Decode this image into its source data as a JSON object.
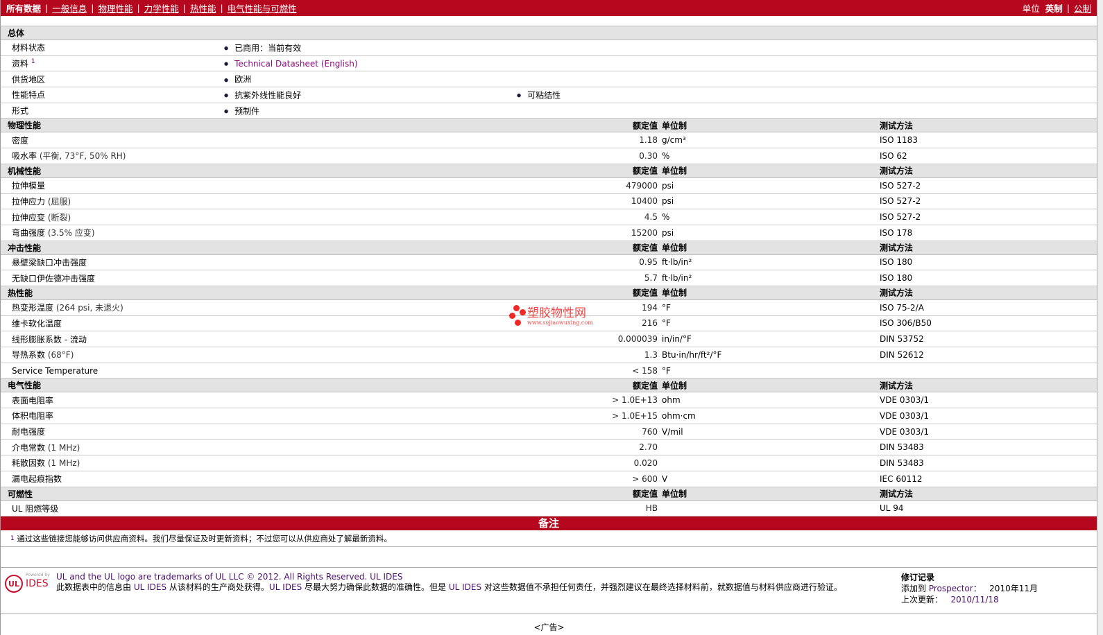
{
  "topbar": {
    "tabs": [
      "所有数据",
      "一般信息",
      "物理性能",
      "力学性能",
      "热性能",
      "电气性能与可燃性"
    ],
    "units_label": "单位",
    "unit_english": "英制",
    "unit_metric": "公制"
  },
  "value_header": "额定值",
  "unit_header": "单位制",
  "method_header": "测试方法",
  "general": {
    "title": "总体",
    "rows": [
      {
        "label": "材料状态",
        "items": [
          "已商用：当前有效"
        ]
      },
      {
        "label": "资料",
        "sup": "1",
        "items": [
          "Technical Datasheet (English)"
        ],
        "link": true
      },
      {
        "label": "供货地区",
        "items": [
          "欧洲"
        ]
      },
      {
        "label": "性能特点",
        "items": [
          "抗紫外线性能良好",
          "可粘结性"
        ]
      },
      {
        "label": "形式",
        "items": [
          "预制件"
        ]
      }
    ]
  },
  "sections": [
    {
      "title": "物理性能",
      "rows": [
        {
          "label": "密度",
          "value": "1.18",
          "unit": "g/cm³",
          "method": "ISO 1183"
        },
        {
          "label": "吸水率",
          "cond": "(平衡, 73°F, 50% RH)",
          "value": "0.30",
          "unit": "%",
          "method": "ISO 62"
        }
      ]
    },
    {
      "title": "机械性能",
      "rows": [
        {
          "label": "拉伸模量",
          "value": "479000",
          "unit": "psi",
          "method": "ISO 527-2"
        },
        {
          "label": "拉伸应力",
          "cond": "(屈服)",
          "value": "10400",
          "unit": "psi",
          "method": "ISO 527-2"
        },
        {
          "label": "拉伸应变",
          "cond": "(断裂)",
          "value": "4.5",
          "unit": "%",
          "method": "ISO 527-2"
        },
        {
          "label": "弯曲强度",
          "cond": "(3.5% 应变)",
          "value": "15200",
          "unit": "psi",
          "method": "ISO 178"
        }
      ]
    },
    {
      "title": "冲击性能",
      "rows": [
        {
          "label": "悬壁梁缺口冲击强度",
          "value": "0.95",
          "unit": "ft·lb/in²",
          "method": "ISO 180"
        },
        {
          "label": "无缺口伊佐德冲击强度",
          "value": "5.7",
          "unit": "ft·lb/in²",
          "method": "ISO 180"
        }
      ]
    },
    {
      "title": "热性能",
      "rows": [
        {
          "label": "热变形温度",
          "cond": "(264 psi, 未退火)",
          "value": "194",
          "unit": "°F",
          "method": "ISO 75-2/A"
        },
        {
          "label": "维卡软化温度",
          "value": "216",
          "unit": "°F",
          "method": "ISO 306/B50"
        },
        {
          "label": "线形膨胀系数 - 流动",
          "value": "0.000039",
          "unit": "in/in/°F",
          "method": "DIN 53752"
        },
        {
          "label": "导热系数",
          "cond": "(68°F)",
          "value": "1.3",
          "unit": "Btu·in/hr/ft²/°F",
          "method": "DIN 52612"
        },
        {
          "label": "Service Temperature",
          "value": "< 158",
          "unit": "°F",
          "method": ""
        }
      ]
    },
    {
      "title": "电气性能",
      "rows": [
        {
          "label": "表面电阻率",
          "value": "> 1.0E+13",
          "unit": "ohm",
          "method": "VDE 0303/1"
        },
        {
          "label": "体积电阻率",
          "value": "> 1.0E+15",
          "unit": "ohm·cm",
          "method": "VDE 0303/1"
        },
        {
          "label": "耐电强度",
          "value": "760",
          "unit": "V/mil",
          "method": "VDE 0303/1"
        },
        {
          "label": "介电常数",
          "cond": "(1 MHz)",
          "value": "2.70",
          "unit": "",
          "method": "DIN 53483"
        },
        {
          "label": "耗散因数",
          "cond": "(1 MHz)",
          "value": "0.020",
          "unit": "",
          "method": "DIN 53483"
        },
        {
          "label": "漏电起痕指数",
          "value": "> 600",
          "unit": "V",
          "method": "IEC 60112"
        }
      ]
    },
    {
      "title": "可燃性",
      "rows": [
        {
          "label": "UL 阻燃等级",
          "value": "HB",
          "unit": "",
          "method": "UL 94"
        }
      ]
    }
  ],
  "notes": {
    "title": "备注",
    "sup": "1",
    "text": "通过这些链接您能够访问供应商资料。我们尽量保证及时更新资料；不过您可以从供应商处了解最新资料。"
  },
  "footer": {
    "logo_powered": "Powered by",
    "logo_ul": "UL",
    "logo_ides": "IDES",
    "trademark": "UL and the UL logo are trademarks of UL LLC © 2012. All Rights Reserved. UL IDES",
    "p1": "此数据表中的信息由 ",
    "ul1": "UL IDES",
    "p2": " 从该材料的生产商处获得。",
    "ul2": "UL IDES",
    "p3": " 尽最大努力确保此数据的准确性。但是 ",
    "ul3": "UL IDES",
    "p4": " 对这些数据值不承担任何责任，并强烈建议在最终选择材料前，就数据值与材料供应商进行验证。",
    "rev_title": "修订记录",
    "added_label": "添加到 ",
    "added_link": "Prospector",
    "added_colon": "：",
    "added_date": "2010年11月",
    "updated_label": "上次更新：",
    "updated_date": "2010/11/18"
  },
  "ad": "<广告>",
  "watermark": {
    "text": "塑胶物性网",
    "url": "www.sujiaowuxing.com"
  }
}
